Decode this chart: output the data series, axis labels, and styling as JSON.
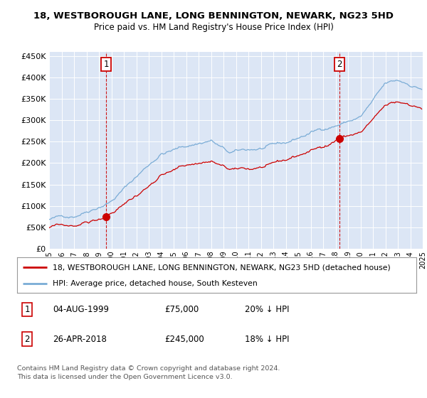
{
  "title1": "18, WESTBOROUGH LANE, LONG BENNINGTON, NEWARK, NG23 5HD",
  "title2": "Price paid vs. HM Land Registry's House Price Index (HPI)",
  "background_color": "#dce6f5",
  "fig_bg_color": "#ffffff",
  "hpi_color": "#7aacd6",
  "price_color": "#cc0000",
  "vline_color": "#cc0000",
  "grid_color": "#ffffff",
  "ytick_values": [
    0,
    50000,
    100000,
    150000,
    200000,
    250000,
    300000,
    350000,
    400000,
    450000
  ],
  "xstart": 1995,
  "xend": 2025,
  "sale1_year": 1999.58,
  "sale1_price": 75000,
  "sale1_label": "1",
  "sale2_year": 2018.32,
  "sale2_price": 245000,
  "sale2_label": "2",
  "legend_line1": "18, WESTBOROUGH LANE, LONG BENNINGTON, NEWARK, NG23 5HD (detached house)",
  "legend_line2": "HPI: Average price, detached house, South Kesteven",
  "table_row1_num": "1",
  "table_row1_date": "04-AUG-1999",
  "table_row1_price": "£75,000",
  "table_row1_hpi": "20% ↓ HPI",
  "table_row2_num": "2",
  "table_row2_date": "26-APR-2018",
  "table_row2_price": "£245,000",
  "table_row2_hpi": "18% ↓ HPI",
  "footer": "Contains HM Land Registry data © Crown copyright and database right 2024.\nThis data is licensed under the Open Government Licence v3.0."
}
